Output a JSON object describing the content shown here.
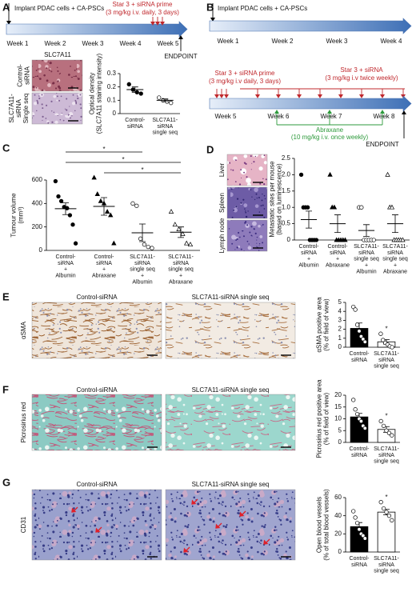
{
  "panel_labels": [
    "A",
    "B",
    "C",
    "D",
    "E",
    "F",
    "G"
  ],
  "timeline_a": {
    "implant": "Implant PDAC cells + CA-PSCs",
    "treatment": "Star 3 + siRNA prime",
    "dose": "(3 mg/kg i.v. daily, 3 days)",
    "weeks": [
      "Week 1",
      "Week 2",
      "Week 3",
      "Week 4",
      "Week 5"
    ],
    "endpoint": "ENDPOINT"
  },
  "images_a": {
    "stain": "SLC7A11",
    "rows": [
      "Control-siRNA",
      "SLC7A11-siRNA Single seq"
    ]
  },
  "timeline_b": {
    "implant": "Implant PDAC cells + CA-PSCs",
    "weeks_1": [
      "Week 1",
      "Week 2",
      "Week 3",
      "Week 4"
    ],
    "prime": "Star 3 + siRNA prime",
    "prime_dose": "(3 mg/kg i.v daily, 3 days)",
    "treatment": "Star 3 + siRNA",
    "treatment_dose": "(3 mg/kg i.v twice weekly)",
    "weeks_2": [
      "Week 5",
      "Week 6",
      "Week 7",
      "Week 8"
    ],
    "abraxane": "Abraxane",
    "abraxane_dose": "(10 mg/kg i.v. once weekly)",
    "endpoint": "ENDPOINT"
  },
  "images_d": [
    "Liver",
    "Spleen",
    "Lymph node"
  ],
  "images_e": {
    "stain": "αSMA",
    "columns": [
      "Control-siRNA",
      "SLC7A11-siRNA single seq"
    ]
  },
  "images_f": {
    "stain": "Picrosirius red",
    "columns": [
      "Control-siRNA",
      "SLC7A11-siRNA single seq"
    ]
  },
  "images_g": {
    "stain": "CD31",
    "columns": [
      "Control-siRNA",
      "SLC7A11-siRNA single seq"
    ]
  },
  "chart_data": [
    {
      "type": "dotplot",
      "ylabel": "Optical density (SLC7A11 staining intensity)",
      "categories": [
        "Control-siRNA",
        "SLC7A11-siRNA single seq"
      ],
      "values": [
        [
          0.22,
          0.18,
          0.16,
          0.15
        ],
        [
          0.12,
          0.1,
          0.09,
          0.08
        ]
      ],
      "means": [
        0.18,
        0.1
      ],
      "errors": [
        0.02,
        0.01
      ],
      "markers": [
        "circle",
        "circle"
      ],
      "fills": [
        "#000000",
        "#ffffff"
      ],
      "ylim": [
        0,
        0.3
      ],
      "yticks": [
        0,
        0.1,
        0.2,
        0.3
      ]
    },
    {
      "type": "dotplot",
      "ylabel": "Tumour volume (mm³)",
      "categories": [
        "Control-siRNA + Albumin",
        "Control-siRNA + Abraxane",
        "SLC7A11-siRNA single seq + Albumin",
        "SLC7A11-siRNA single seq + Abraxane"
      ],
      "values": [
        [
          590,
          460,
          420,
          370,
          360,
          300,
          220,
          60
        ],
        [
          620,
          480,
          420,
          400,
          330,
          300,
          60
        ],
        [
          400,
          380,
          100,
          50,
          30,
          20
        ],
        [
          330,
          220,
          180,
          140,
          60,
          50
        ]
      ],
      "means": [
        355,
        375,
        150,
        155
      ],
      "errors": [
        50,
        75,
        75,
        45
      ],
      "markers": [
        "circle",
        "triangle",
        "circle",
        "triangle"
      ],
      "fills": [
        "#000000",
        "#000000",
        "#ffffff",
        "#ffffff"
      ],
      "ylim": [
        0,
        600
      ],
      "yticks": [
        0,
        200,
        400,
        600
      ],
      "annotations": [
        "*",
        "*",
        "*"
      ]
    },
    {
      "type": "dotplot",
      "ylabel": "Metastatic sites per mouse (based on luminescence)",
      "categories": [
        "Control-siRNA + Albumin",
        "Control-siRNA + Abraxane",
        "SLC7A11-siRNA single seq + Albumin",
        "SLC7A11-siRNA single seq + Abraxane"
      ],
      "values": [
        [
          2,
          1,
          1,
          1,
          0,
          0,
          0,
          0
        ],
        [
          2,
          1,
          1,
          0,
          0,
          0,
          0,
          0
        ],
        [
          1,
          1,
          0,
          0,
          0,
          0,
          0
        ],
        [
          2,
          1,
          1,
          0,
          0,
          0,
          0,
          0
        ]
      ],
      "means": [
        0.625,
        0.5,
        0.29,
        0.5
      ],
      "errors": [
        0.26,
        0.27,
        0.18,
        0.27
      ],
      "markers": [
        "circle",
        "triangle",
        "circle",
        "triangle"
      ],
      "fills": [
        "#000000",
        "#000000",
        "#ffffff",
        "#ffffff"
      ],
      "ylim": [
        0,
        2.5
      ],
      "yticks": [
        0,
        0.5,
        {
          "value": 1,
          "label": "1.0"
        },
        1.5,
        {
          "value": 2,
          "label": "2.0"
        },
        2.5
      ]
    },
    {
      "type": "bar",
      "ylabel": "αSMA positive area (% of field of view)",
      "categories": [
        "Control-siRNA",
        "SLC7A11-siRNA single seq"
      ],
      "values": [
        2.1,
        0.6
      ],
      "errors": [
        0.6,
        0.25
      ],
      "points": [
        [
          4.5,
          4.2,
          2.5,
          1.8,
          1.2,
          0.9,
          0.6
        ],
        [
          1.5,
          0.8,
          0.5,
          0.3,
          0.1,
          0
        ]
      ],
      "fills": [
        "#000000",
        "#ffffff"
      ],
      "point_fill": "#ffffff",
      "ylim": [
        0,
        5
      ],
      "yticks": [
        0,
        1,
        2,
        3,
        4,
        5
      ],
      "annotations": [
        "*"
      ]
    },
    {
      "type": "bar",
      "ylabel": "Picrosirius red positive area (% of field of view)",
      "categories": [
        "Control-siRNA",
        "SLC7A11-siRNA single seq"
      ],
      "values": [
        10.8,
        5.5
      ],
      "errors": [
        1.5,
        1.2
      ],
      "points": [
        [
          18,
          14,
          12,
          10,
          9,
          7,
          6
        ],
        [
          9,
          7,
          5,
          4,
          3
        ]
      ],
      "fills": [
        "#000000",
        "#ffffff"
      ],
      "point_fill": "#ffffff",
      "ylim": [
        0,
        20
      ],
      "yticks": [
        0,
        5,
        10,
        15,
        20
      ],
      "annotations": [
        "*"
      ]
    },
    {
      "type": "bar",
      "ylabel": "Open blood vessels (% of total blood vessels)",
      "categories": [
        "Control-siRNA",
        "SLC7A11-siRNA single seq"
      ],
      "values": [
        28,
        44
      ],
      "errors": [
        4.5,
        3
      ],
      "points": [
        [
          45,
          38,
          32,
          25,
          20,
          18,
          15
        ],
        [
          55,
          48,
          44,
          40,
          35
        ]
      ],
      "fills": [
        "#000000",
        "#ffffff"
      ],
      "point_fill": "#ffffff",
      "ylim": [
        0,
        60
      ],
      "yticks": [
        0,
        20,
        40,
        60
      ],
      "annotations": [
        "*"
      ]
    }
  ]
}
